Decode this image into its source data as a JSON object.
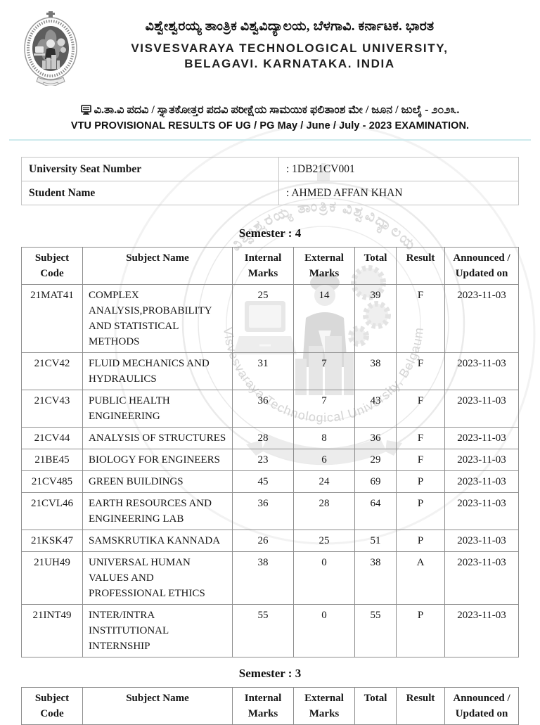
{
  "colors": {
    "divider": "#cdeaed"
  },
  "university": {
    "name_kannada": "ವಿಶ್ವೇಶ್ವರಯ್ಯ ತಾಂತ್ರಿಕ ವಿಶ್ವವಿದ್ಯಾಲಯ, ಬೆಳಗಾವಿ. ಕರ್ನಾಟಕ. ಭಾರತ",
    "name_english_line1": "VISVESVARAYA TECHNOLOGICAL UNIVERSITY,",
    "name_english_line2": "BELAGAVI. KARNATAKA. INDIA"
  },
  "notice": {
    "kannada": "ವಿ.ತಾ.ವಿ ಪದವಿ / ಸ್ನಾತಕೋತ್ತರ ಪದವಿ ಪರೀಕ್ಷೆಯ ಸಾಮಯಿಕ ಫಲಿತಾಂಶ ಮೇ / ಜೂನ / ಜುಲೈ - ೨೦೨೩.",
    "english": "VTU PROVISIONAL RESULTS OF UG / PG May / June / July - 2023 EXAMINATION."
  },
  "student": {
    "usn_label": "University Seat Number",
    "usn_value": ": 1DB21CV001",
    "name_label": "Student Name",
    "name_value": ": AHMED AFFAN KHAN"
  },
  "results": {
    "columns": [
      {
        "key": "code",
        "label": "Subject Code"
      },
      {
        "key": "name",
        "label": "Subject Name"
      },
      {
        "key": "internal",
        "label": "Internal Marks"
      },
      {
        "key": "external",
        "label": "External Marks"
      },
      {
        "key": "total",
        "label": "Total"
      },
      {
        "key": "result",
        "label": "Result"
      },
      {
        "key": "announced",
        "label": "Announced / Updated on"
      }
    ],
    "semesters": [
      {
        "title": "Semester : 4",
        "rows": [
          {
            "code": "21MAT41",
            "name": "COMPLEX ANALYSIS,PROBABILITY AND STATISTICAL METHODS",
            "internal": "25",
            "external": "14",
            "total": "39",
            "result": "F",
            "announced": "2023-11-03"
          },
          {
            "code": "21CV42",
            "name": "FLUID MECHANICS AND HYDRAULICS",
            "internal": "31",
            "external": "7",
            "total": "38",
            "result": "F",
            "announced": "2023-11-03"
          },
          {
            "code": "21CV43",
            "name": "PUBLIC HEALTH ENGINEERING",
            "internal": "36",
            "external": "7",
            "total": "43",
            "result": "F",
            "announced": "2023-11-03"
          },
          {
            "code": "21CV44",
            "name": "ANALYSIS OF STRUCTURES",
            "internal": "28",
            "external": "8",
            "total": "36",
            "result": "F",
            "announced": "2023-11-03"
          },
          {
            "code": "21BE45",
            "name": "BIOLOGY FOR ENGINEERS",
            "internal": "23",
            "external": "6",
            "total": "29",
            "result": "F",
            "announced": "2023-11-03"
          },
          {
            "code": "21CV485",
            "name": "GREEN BUILDINGS",
            "internal": "45",
            "external": "24",
            "total": "69",
            "result": "P",
            "announced": "2023-11-03"
          },
          {
            "code": "21CVL46",
            "name": "EARTH RESOURCES AND ENGINEERING LAB",
            "internal": "36",
            "external": "28",
            "total": "64",
            "result": "P",
            "announced": "2023-11-03"
          },
          {
            "code": "21KSK47",
            "name": "SAMSKRUTIKA KANNADA",
            "internal": "26",
            "external": "25",
            "total": "51",
            "result": "P",
            "announced": "2023-11-03"
          },
          {
            "code": "21UH49",
            "name": "UNIVERSAL HUMAN VALUES AND PROFESSIONAL ETHICS",
            "internal": "38",
            "external": "0",
            "total": "38",
            "result": "A",
            "announced": "2023-11-03"
          },
          {
            "code": "21INT49",
            "name": "INTER/INTRA INSTITUTIONAL INTERNSHIP",
            "internal": "55",
            "external": "0",
            "total": "55",
            "result": "P",
            "announced": "2023-11-03"
          }
        ]
      },
      {
        "title": "Semester : 3",
        "rows": []
      }
    ]
  },
  "watermark": {
    "arc_text_kannada": "ವಿಶ್ವೇಶ್ವರಯ್ಯ ತಾಂತ್ರಿಕ ವಿಶ್ವವಿದ್ಯಾಲಯ",
    "arc_text_english": "Visvesvaraya Technological University, Belgaum"
  }
}
